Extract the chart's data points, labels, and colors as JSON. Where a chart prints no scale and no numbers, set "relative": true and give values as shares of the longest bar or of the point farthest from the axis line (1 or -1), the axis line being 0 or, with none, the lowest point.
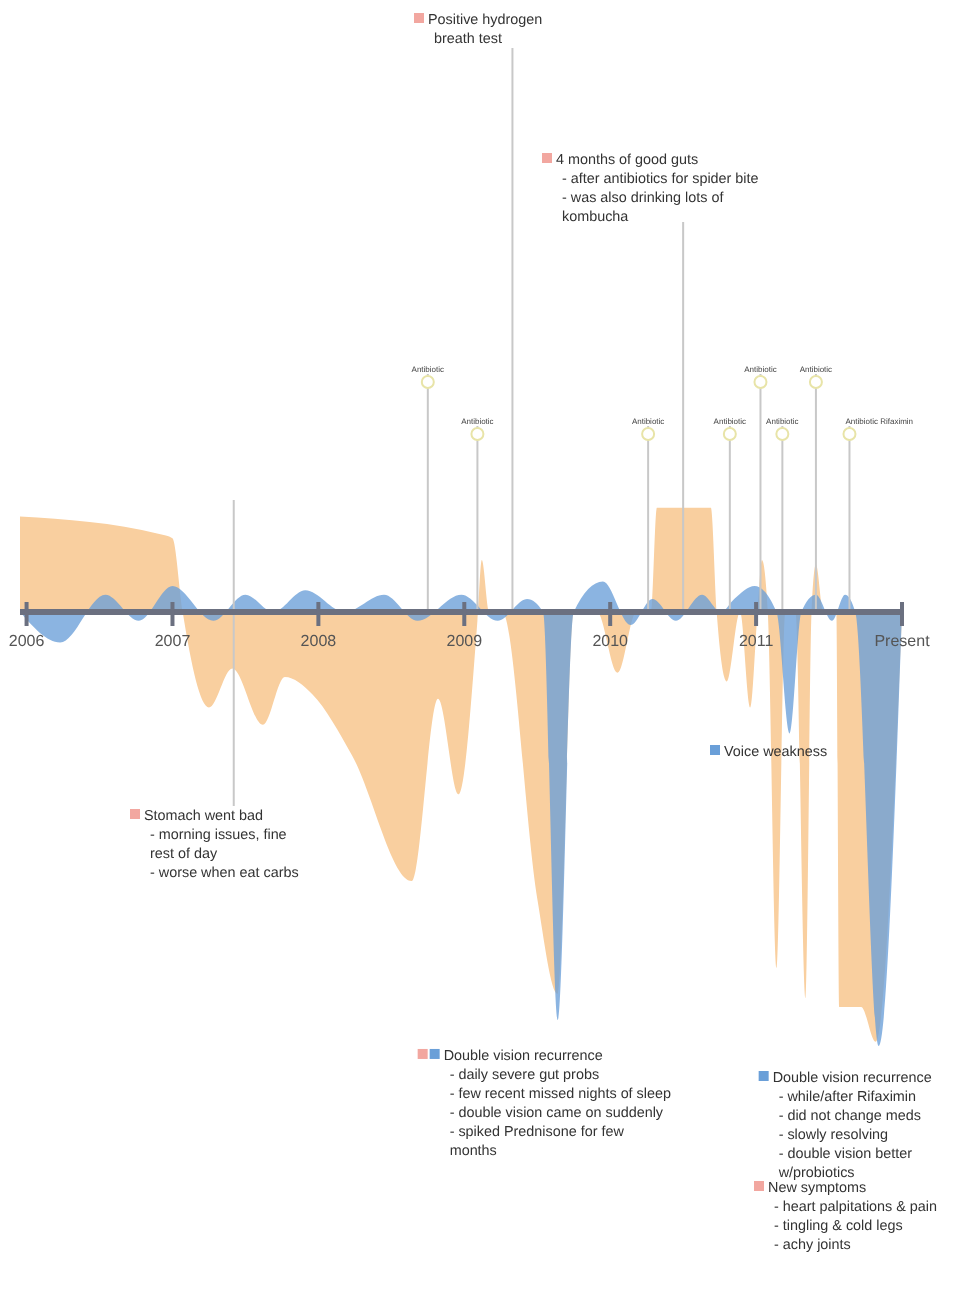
{
  "chart_data": {
    "type": "area",
    "relative": true,
    "xlim": [
      2005.955,
      2012
    ],
    "xticks": [
      2006,
      2007,
      2008,
      2009,
      2010,
      2011,
      {
        "value": 2012,
        "label": "Present"
      }
    ],
    "series": [
      {
        "color": "#f9cf9f",
        "x": [
          2005.955,
          2006.91,
          2007.0,
          2007.07,
          2007.25,
          2007.41,
          2007.62,
          2007.77,
          2007.96,
          2008.23,
          2008.64,
          2008.82,
          2008.96,
          2009.09,
          2009.12,
          2009.17,
          2009.26,
          2009.5,
          2009.64,
          2009.75,
          2009.91,
          2010.05,
          2010.18,
          2010.28,
          2010.32,
          2010.69,
          2010.73,
          2010.8,
          2010.89,
          2010.96,
          2011.01,
          2011.04,
          2011.08,
          2011.14,
          2011.2,
          2011.27,
          2011.34,
          2011.38,
          2011.41,
          2011.46,
          2011.55,
          2011.57,
          2011.72,
          2011.82,
          2012.0
        ],
        "values": [
          0.22,
          0.18,
          0.17,
          0,
          -0.22,
          -0.13,
          -0.26,
          -0.15,
          -0.19,
          -0.33,
          -0.62,
          -0.2,
          -0.42,
          -0.02,
          0.12,
          0,
          0,
          -0.66,
          -0.88,
          0,
          0,
          -0.14,
          0,
          0,
          0.24,
          0.24,
          0,
          -0.16,
          0,
          -0.22,
          0,
          0.12,
          0,
          -0.82,
          0,
          0,
          -0.89,
          0,
          0.11,
          0,
          0,
          -0.91,
          -0.91,
          -0.99,
          0
        ]
      },
      {
        "color": "#6a9fd8",
        "x": [
          2005.955,
          2006.23,
          2006.54,
          2006.77,
          2007.0,
          2007.28,
          2007.5,
          2007.69,
          2007.91,
          2008.18,
          2008.45,
          2008.68,
          2008.98,
          2009.23,
          2009.43,
          2009.54,
          2009.64,
          2009.75,
          2009.95,
          2010.14,
          2010.29,
          2010.45,
          2010.63,
          2010.76,
          2010.85,
          2010.99,
          2011.14,
          2011.23,
          2011.31,
          2011.41,
          2011.52,
          2011.61,
          2011.68,
          2011.84,
          2012.0
        ],
        "values": [
          0,
          -0.07,
          0.04,
          -0.02,
          0.06,
          -0.02,
          0.04,
          0,
          0.05,
          0,
          0.04,
          -0.02,
          0.04,
          -0.02,
          0.03,
          0,
          -0.94,
          0,
          0.07,
          -0.03,
          0.03,
          -0.02,
          0.04,
          0,
          0.03,
          0.06,
          0,
          -0.28,
          0,
          0.04,
          -0.02,
          0.04,
          0,
          -1.0,
          0
        ]
      }
    ],
    "ref_lines": [
      {
        "axis": "x",
        "value": 2008.75,
        "label": "Antibiotic"
      },
      {
        "axis": "x",
        "value": 2009.09,
        "label": "Antibiotic"
      },
      {
        "axis": "x",
        "value": 2010.26,
        "label": "Antibiotic"
      },
      {
        "axis": "x",
        "value": 2010.82,
        "label": "Antibiotic"
      },
      {
        "axis": "x",
        "value": 2011.03,
        "label": "Antibiotic"
      },
      {
        "axis": "x",
        "value": 2011.18,
        "label": "Antibiotic"
      },
      {
        "axis": "x",
        "value": 2011.41,
        "label": "Antibiotic"
      },
      {
        "axis": "x",
        "value": 2011.64,
        "label": "Antibiotic Rifaximin"
      },
      {
        "axis": "x",
        "value": 2009.33,
        "label": "Positive hydrogen\nbreath test"
      },
      {
        "axis": "x",
        "value": 2010.5,
        "label": "4 months of good guts\n- after antibiotics for spider bite\n- was also drinking lots of\nkombucha"
      },
      {
        "axis": "x",
        "value": 2007.42,
        "label": "Stomach went bad\n- morning issues, fine\nrest of day\n- worse when eat carbs"
      }
    ],
    "annotations": [
      "Voice weakness",
      {
        "text": "Double vision recurrence\n- daily severe gut probs\n- few recent missed nights of sleep\n- double vision came on suddenly\n- spiked Prednisone for few\nmonths",
        "x": 2009.64,
        "y": -0.94
      },
      {
        "text": "Double vision recurrence\n- while/after Rifaximin\n- did not change meds\n- slowly resolving\n- double vision better\nw/probiotics",
        "x": 2011.84,
        "y": -1.0
      },
      "New symptoms\n- heart palpitations & pain\n- tingling & cold legs\n- achy joints"
    ]
  }
}
